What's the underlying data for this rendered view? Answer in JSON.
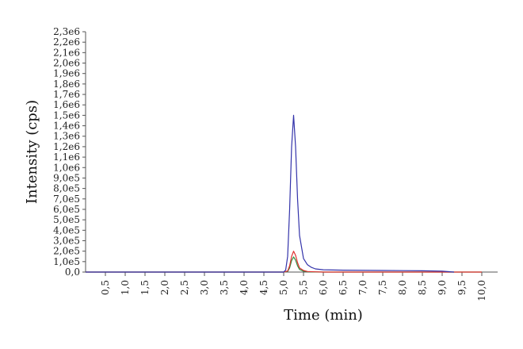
{
  "chart_data": {
    "type": "line",
    "xlabel": "Time (min)",
    "ylabel": "Intensity (cps)",
    "xlim": [
      0.0,
      10.4
    ],
    "ylim": [
      0,
      2300000
    ],
    "x_ticks": [
      "0,5",
      "1,0",
      "1,5",
      "2,0",
      "2,5",
      "3,0",
      "3,5",
      "4,0",
      "4,5",
      "5,0",
      "5,5",
      "6,0",
      "6,5",
      "7,0",
      "7,5",
      "8,0",
      "8,5",
      "9,0",
      "9,5",
      "10,0"
    ],
    "x_tick_values": [
      0.5,
      1.0,
      1.5,
      2.0,
      2.5,
      3.0,
      3.5,
      4.0,
      4.5,
      5.0,
      5.5,
      6.0,
      6.5,
      7.0,
      7.5,
      8.0,
      8.5,
      9.0,
      9.5,
      10.0
    ],
    "y_ticks": [
      "0,0",
      "1,0e5",
      "2,0e5",
      "3,0e5",
      "4,0e5",
      "5,0e5",
      "6,0e5",
      "7,0e5",
      "8,0e5",
      "9,0e5",
      "1,0e6",
      "1,1e6",
      "1,2e6",
      "1,3e6",
      "1,4e6",
      "1,5e6",
      "1,6e6",
      "1,7e6",
      "1,8e6",
      "1,9e6",
      "2,0e6",
      "2,1e6",
      "2,2e6",
      "2,3e6"
    ],
    "y_tick_values": [
      0,
      100000,
      200000,
      300000,
      400000,
      500000,
      600000,
      700000,
      800000,
      900000,
      1000000,
      1100000,
      1200000,
      1300000,
      1400000,
      1500000,
      1600000,
      1700000,
      1800000,
      1900000,
      2000000,
      2100000,
      2200000,
      2300000
    ],
    "series": [
      {
        "color": "#3333aa",
        "x": [
          0.0,
          5.0,
          5.05,
          5.1,
          5.15,
          5.2,
          5.25,
          5.3,
          5.35,
          5.4,
          5.5,
          5.6,
          5.7,
          5.8,
          6.0,
          6.5,
          7.5,
          8.5,
          9.0,
          9.3
        ],
        "y": [
          0,
          0,
          20000,
          150000,
          600000,
          1200000,
          1500000,
          1200000,
          700000,
          350000,
          130000,
          70000,
          45000,
          30000,
          22000,
          18000,
          15000,
          12000,
          8000,
          0
        ]
      },
      {
        "color": "#e03030",
        "x": [
          0.0,
          5.0,
          5.1,
          5.15,
          5.2,
          5.25,
          5.3,
          5.35,
          5.4,
          5.5,
          5.6,
          5.8,
          6.0,
          10.0
        ],
        "y": [
          0,
          0,
          10000,
          60000,
          150000,
          200000,
          160000,
          90000,
          40000,
          15000,
          5000,
          2000,
          0,
          0
        ]
      },
      {
        "color": "#2e8b3e",
        "x": [
          0.0,
          5.0,
          5.1,
          5.15,
          5.2,
          5.25,
          5.3,
          5.35,
          5.4,
          5.5,
          5.6,
          5.8,
          6.0,
          10.0
        ],
        "y": [
          0,
          0,
          5000,
          40000,
          110000,
          145000,
          115000,
          60000,
          25000,
          8000,
          3000,
          1000,
          0,
          0
        ]
      }
    ]
  }
}
